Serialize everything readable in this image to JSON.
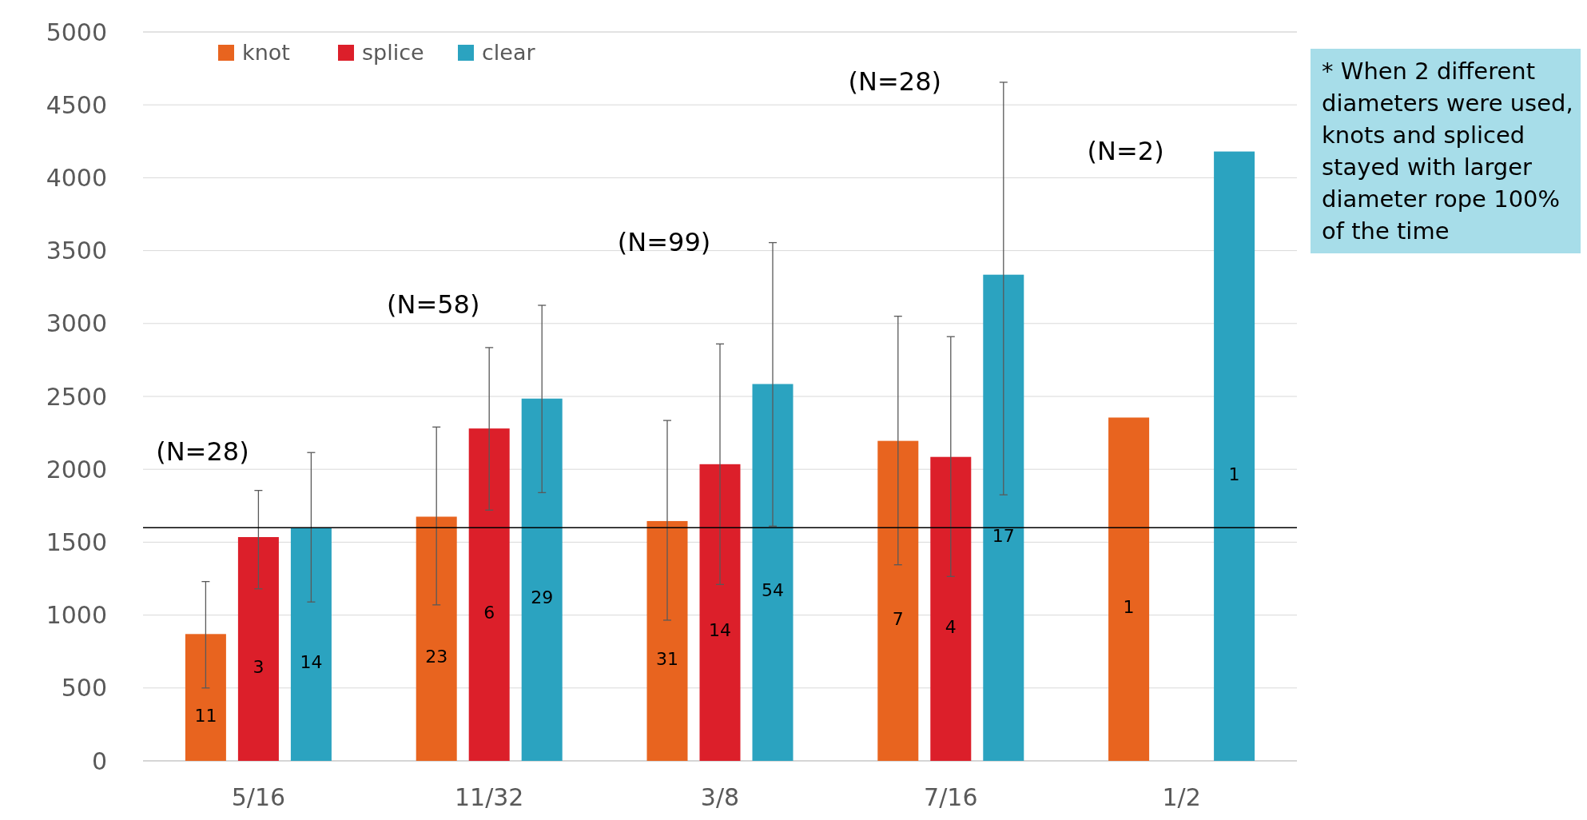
{
  "chart_data": {
    "type": "bar",
    "categories": [
      "5/16",
      "11/32",
      "3/8",
      "7/16",
      "1/2"
    ],
    "series": [
      {
        "name": "knot",
        "color": "#e8641f",
        "values": [
          870,
          1675,
          1645,
          2195,
          2355
        ],
        "errors": [
          [
            500,
            1230
          ],
          [
            1070,
            2290
          ],
          [
            965,
            2335
          ],
          [
            1345,
            3050
          ],
          null
        ]
      },
      {
        "name": "splice",
        "color": "#dc1f2a",
        "values": [
          1535,
          2280,
          2035,
          2085,
          null
        ],
        "errors": [
          [
            1180,
            1855
          ],
          [
            1720,
            2835
          ],
          [
            1210,
            2860
          ],
          [
            1265,
            2910
          ],
          null
        ]
      },
      {
        "name": "clear",
        "color": "#2ba3c0",
        "values": [
          1600,
          2485,
          2585,
          3335,
          4180
        ],
        "errors": [
          [
            1090,
            2115
          ],
          [
            1840,
            3125
          ],
          [
            1610,
            3555
          ],
          [
            1825,
            4655
          ],
          null
        ]
      }
    ],
    "ylim": [
      0,
      5000
    ],
    "yticks": [
      0,
      500,
      1000,
      1500,
      2000,
      2500,
      3000,
      3500,
      4000,
      4500,
      5000
    ],
    "grid": "y",
    "legend": "top left",
    "ref_lines": [
      {
        "axis": "y",
        "value": 1600,
        "color": "#000000"
      }
    ],
    "annotations": [
      "(N=28)",
      "(N=58)",
      "(N=99)",
      "(N=28)",
      "(N=2)",
      "11",
      "23",
      "31",
      "7",
      "1",
      "3",
      "6",
      "14",
      "4",
      "14",
      "29",
      "54",
      "17",
      "1",
      "* When 2 different diameters were used, knots and spliced stayed with larger diameter rope 100% of the time"
    ]
  }
}
